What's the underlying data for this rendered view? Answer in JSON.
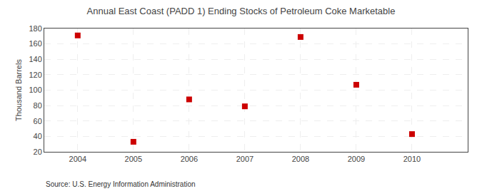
{
  "chart_data": {
    "type": "scatter",
    "title": "Annual East Coast (PADD 1) Ending Stocks of Petroleum Coke Marketable",
    "ylabel": "Thousand Barrels",
    "source": "Source: U.S. Energy Information Administration",
    "x": [
      2004,
      2005,
      2006,
      2007,
      2008,
      2009,
      2010
    ],
    "values": [
      171,
      33,
      88,
      79,
      169,
      107,
      43
    ],
    "color": "#cc0000",
    "marker": "square",
    "xlim": [
      2003.4,
      2011.0
    ],
    "ylim": [
      20,
      180
    ],
    "xticks": [
      2004,
      2005,
      2006,
      2007,
      2008,
      2009,
      2010
    ],
    "yticks": [
      20,
      40,
      60,
      80,
      100,
      120,
      140,
      160,
      180
    ],
    "grid": true
  }
}
